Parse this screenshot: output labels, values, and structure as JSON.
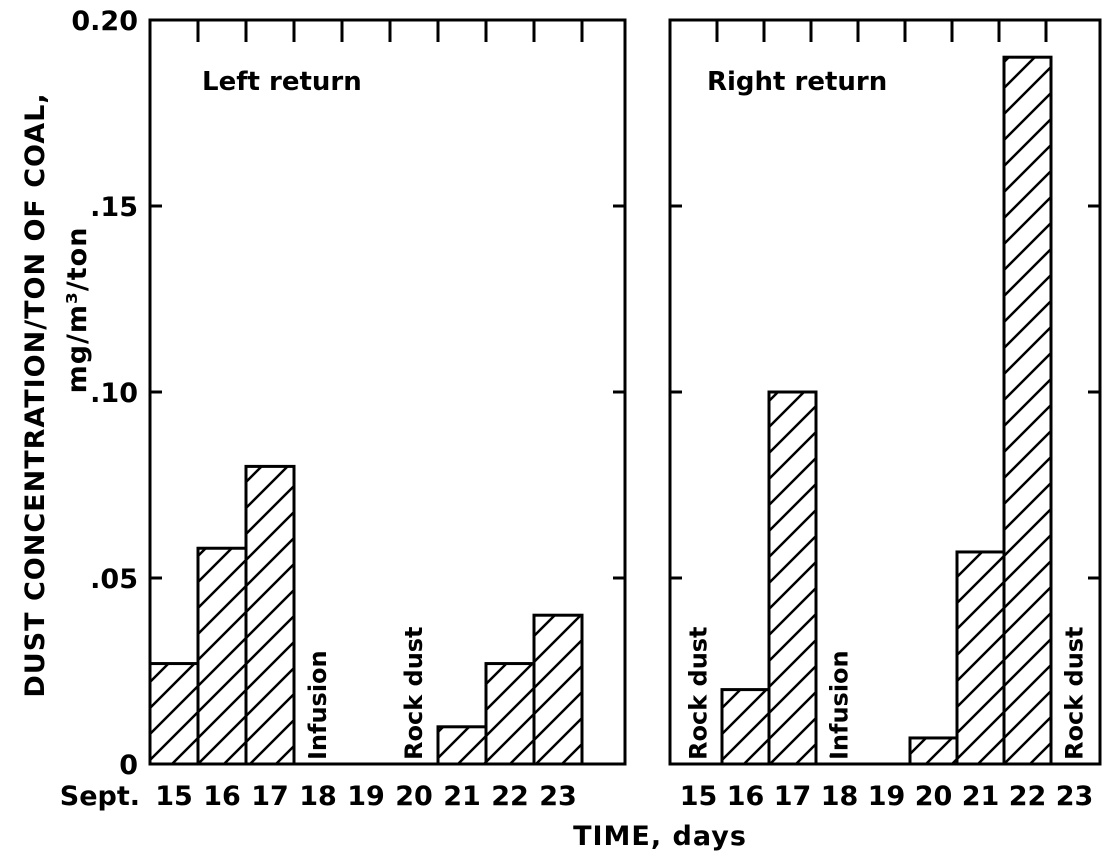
{
  "chart_data": {
    "type": "bar",
    "x_tick_prefix": "Sept.",
    "x": [
      "15",
      "16",
      "17",
      "18",
      "19",
      "20",
      "21",
      "22",
      "23"
    ],
    "xlabel": "TIME, days",
    "ylabel": "DUST CONCENTRATION/TON OF COAL,",
    "ylabel_units": "mg/m³/ton",
    "ylim": [
      0,
      0.2
    ],
    "yticks": [
      "0",
      ".05",
      ".10",
      ".15",
      "0.20"
    ],
    "bar_fill": "diagonal hatch",
    "panels": [
      {
        "title": "Left return",
        "values": [
          0.027,
          0.058,
          0.08,
          null,
          null,
          null,
          0.01,
          0.027,
          0.04
        ],
        "annotations": [
          {
            "label": "Infusion",
            "x": "18"
          },
          {
            "label": "Rock dust",
            "x": "20"
          }
        ]
      },
      {
        "title": "Right return",
        "values": [
          null,
          0.02,
          0.1,
          null,
          null,
          0.007,
          0.057,
          0.19,
          null
        ],
        "annotations": [
          {
            "label": "Rock dust",
            "x": "15"
          },
          {
            "label": "Infusion",
            "x": "18"
          },
          {
            "label": "Rock dust",
            "x": "23"
          }
        ]
      }
    ]
  }
}
